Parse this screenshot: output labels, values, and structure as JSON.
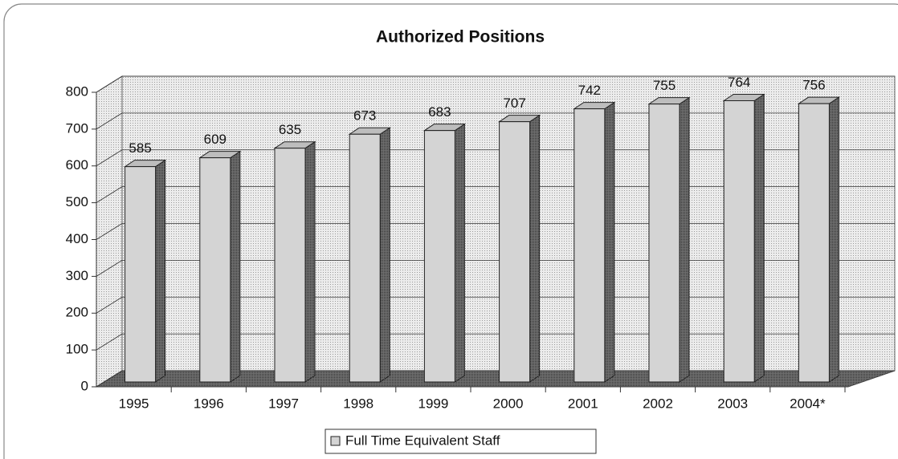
{
  "chart_data": {
    "type": "bar",
    "title": "Authorized Positions",
    "categories": [
      "1995",
      "1996",
      "1997",
      "1998",
      "1999",
      "2000",
      "2001",
      "2002",
      "2003",
      "2004*"
    ],
    "series": [
      {
        "name": "Full Time Equivalent Staff",
        "color": "#d4d4d4",
        "values": [
          585,
          609,
          635,
          673,
          683,
          707,
          742,
          755,
          764,
          756
        ]
      }
    ],
    "ylim": [
      0,
      800
    ],
    "yticks": [
      0,
      100,
      200,
      300,
      400,
      500,
      600,
      700,
      800
    ],
    "grid": true
  }
}
